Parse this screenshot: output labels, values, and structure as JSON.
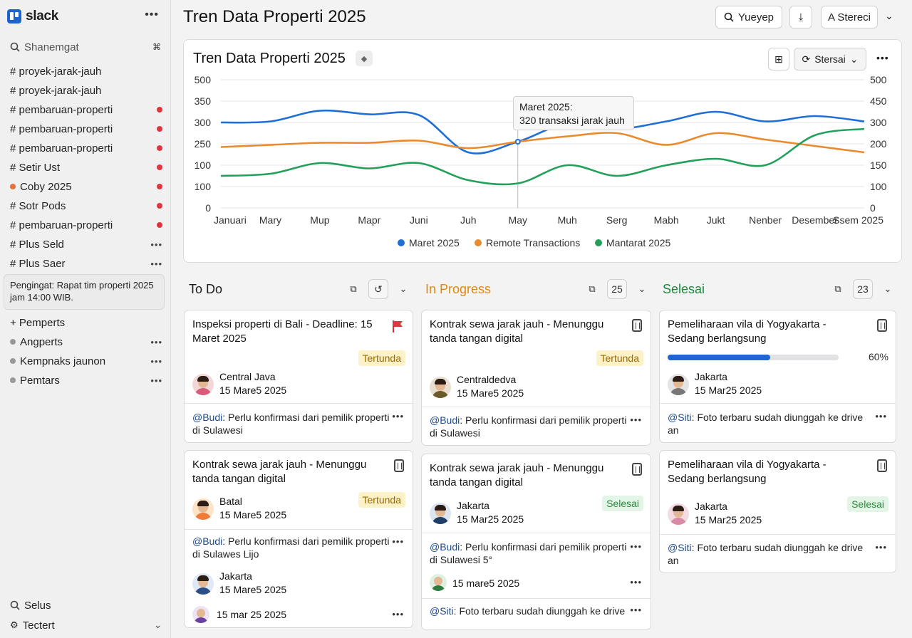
{
  "sidebar": {
    "brand": "slack",
    "search": "Shanemgat",
    "search_shortcut": "⌘",
    "channels": [
      {
        "label": "# proyek-jarak-jauh",
        "indicator": ""
      },
      {
        "label": "# proyek-jarak-jauh",
        "indicator": ""
      },
      {
        "label": "# pembaruan-properti",
        "indicator": "dot"
      },
      {
        "label": "# pembaruan-properti",
        "indicator": "dot"
      },
      {
        "label": "# pembaruan-properti",
        "indicator": "dot"
      },
      {
        "label": "# Setir Ust",
        "indicator": "dot"
      },
      {
        "label": "Coby 2025",
        "indicator": "dot"
      },
      {
        "label": "# Sotr Pods",
        "indicator": "dot"
      },
      {
        "label": "# pembaruan-properti",
        "indicator": "dot"
      },
      {
        "label": "# Plus Seld",
        "indicator": "more"
      },
      {
        "label": "# Plus Saer",
        "indicator": "more"
      }
    ],
    "reminder": "Pengingat: Rapat tim properti 2025 jam 14:00 WIB.",
    "add_label": "+ Pemperts",
    "groups": [
      {
        "label": "Angperts"
      },
      {
        "label": "Kempnaks jaunon"
      },
      {
        "label": "Pemtars"
      }
    ],
    "footer_1": "Selus",
    "footer_2": "Tectert"
  },
  "header": {
    "title": "Tren Data Properti 2025",
    "search_button": "Yueyep",
    "user_button": "A Stereci"
  },
  "chart_card": {
    "title": "Tren Data Properti 2025",
    "filter_button": "Stersai",
    "tooltip_line1": "Maret 2025:",
    "tooltip_line2": "320 transaksi jarak jauh"
  },
  "chart_data": {
    "type": "line",
    "x": [
      "Januari",
      "Mary",
      "Mup",
      "Mapr",
      "Juni",
      "Juh",
      "May",
      "Muh",
      "Serg",
      "Mabh",
      "Jukt",
      "Nenber",
      "Desember",
      "Ssem 2025"
    ],
    "y_left_ticks": [
      "500",
      "350",
      "300",
      "250",
      "100",
      "100",
      "0"
    ],
    "y_right_ticks": [
      "500",
      "450",
      "300",
      "200",
      "150",
      "100",
      "0"
    ],
    "ylim": [
      0,
      6
    ],
    "grid": true,
    "legend_position": "bottom",
    "series": [
      {
        "name": "Maret 2025",
        "color": "#1f6fd6",
        "values": [
          4.0,
          4.05,
          4.55,
          4.38,
          4.35,
          2.6,
          3.1,
          3.95,
          3.7,
          4.05,
          4.5,
          4.05,
          4.3,
          4.05
        ]
      },
      {
        "name": "Remote Transactions",
        "color": "#ea8a2e",
        "values": [
          2.85,
          2.95,
          3.05,
          3.05,
          3.15,
          2.8,
          3.1,
          3.35,
          3.5,
          2.95,
          3.5,
          3.2,
          2.9,
          2.6
        ]
      },
      {
        "name": "Mantarat 2025",
        "color": "#22a05a",
        "values": [
          1.5,
          1.6,
          2.1,
          1.85,
          2.1,
          1.3,
          1.15,
          2.0,
          1.5,
          2.0,
          2.3,
          2.0,
          3.4,
          3.7
        ]
      }
    ],
    "annotation": {
      "x_index": 6,
      "text": "Maret 2025: 320 transaksi jarak jauh"
    }
  },
  "columns": [
    {
      "title": "To Do",
      "color": "#1d1d1f",
      "count": ""
    },
    {
      "title": "In Progress",
      "color": "#e08a10",
      "count": "25"
    },
    {
      "title": "Selesai",
      "color": "#1d8a3a",
      "count": "23"
    }
  ],
  "cards": {
    "c1": {
      "title": "Inspeksi properti di Bali - Deadline: 15 Maret 2025",
      "badge": "Tertunda",
      "location": "Central Java",
      "date": "15 Mare5 2025",
      "mention": "@Budi",
      "comment": ": Perlu konfirmasi dari pemilik properti di Sulawesi"
    },
    "c2": {
      "title": "Kontrak sewa jarak jauh - Menunggu tanda tangan digital",
      "badge": "Tertunda",
      "location": "Batal",
      "date": "15 Mare5 2025",
      "mention": "@Budi",
      "comment": ": Perlu konfirmasi dari pemilik properti di Sulawes Lijo",
      "sub_location": "Jakarta",
      "sub_date": "15 Mare5 2025",
      "sub_date2": "15 mar 25 2025"
    },
    "c3": {
      "title": "Kontrak sewa jarak jauh - Menunggu tanda tangan digital",
      "badge": "Tertunda",
      "location": "Centraldedva",
      "date": "15 Mare5 2025",
      "mention": "@Budi",
      "comment": ": Perlu konfirmasi dari pemilik properti di Sulawesi"
    },
    "c4": {
      "title": "Kontrak sewa jarak jauh - Menunggu tanda tangan digital",
      "badge": "Selesai",
      "location": "Jakarta",
      "date": "15 Mar25 2025",
      "mention": "@Budi",
      "comment": ": Perlu konfirmasi dari pemilik properti di Sulawesi 5°",
      "sub_date": "15 mare5 2025",
      "mention2": "@Siti",
      "comment2": ": Foto terbaru sudah diunggah ke drive"
    },
    "c5": {
      "title": "Pemeliharaan vila di Yogyakarta - Sedang berlangsung",
      "progress": 0.6,
      "progress_label": "60%",
      "location": "Jakarta",
      "date": "15 Mar25 2025",
      "mention": "@Siti",
      "comment": ": Foto terbaru sudah diunggah ke drive an"
    },
    "c6": {
      "title": "Pemeliharaan vila di Yogyakarta - Sedang berlangsung",
      "badge": "Selesai",
      "location": "Jakarta",
      "date": "15 Mar25 2025",
      "mention": "@Siti",
      "comment": ": Foto terbaru sudah diunggah ke drive an"
    }
  }
}
